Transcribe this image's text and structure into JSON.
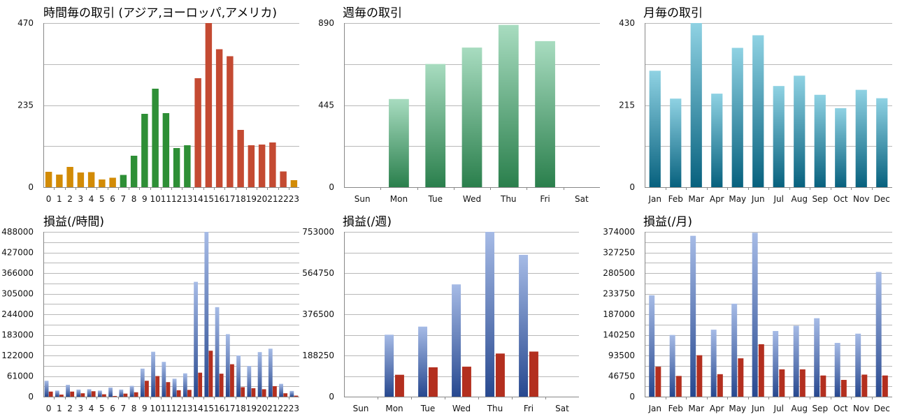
{
  "colors": {
    "orange": "#d28b06",
    "green": "#2e8f36",
    "salmon": "#c44a32",
    "mint_top": "#a8dcc0",
    "mint_bottom": "#2a7f4c",
    "cyan_top": "#8fd2e3",
    "cyan_bottom": "#07617e",
    "blue_top": "#a6bbe6",
    "blue_bottom": "#27488f",
    "red": "#b32f1f"
  },
  "chart_data": [
    {
      "type": "bar",
      "title": "時間毎の取引 (アジア,ヨーロッパ,アメリカ)",
      "categories": [
        "0",
        "1",
        "2",
        "3",
        "4",
        "5",
        "6",
        "7",
        "8",
        "9",
        "10",
        "11",
        "12",
        "13",
        "14",
        "15",
        "16",
        "17",
        "18",
        "19",
        "20",
        "21",
        "22",
        "23"
      ],
      "values": [
        44,
        36,
        58,
        42,
        43,
        22,
        27,
        35,
        90,
        210,
        282,
        212,
        112,
        120,
        312,
        470,
        395,
        375,
        164,
        120,
        122,
        128,
        45,
        20
      ],
      "bar_colors": [
        "orange",
        "orange",
        "orange",
        "orange",
        "orange",
        "orange",
        "orange",
        "green",
        "green",
        "green",
        "green",
        "green",
        "green",
        "green",
        "salmon",
        "salmon",
        "salmon",
        "salmon",
        "salmon",
        "salmon",
        "salmon",
        "salmon",
        "salmon",
        "orange"
      ],
      "ylim": [
        0,
        470
      ],
      "yticks": [
        "0",
        "235",
        "470"
      ],
      "grid": true
    },
    {
      "type": "bar",
      "title": "週毎の取引",
      "categories": [
        "Sun",
        "Mon",
        "Tue",
        "Wed",
        "Thu",
        "Fri",
        "Sat"
      ],
      "values": [
        0,
        478,
        668,
        757,
        880,
        792,
        0
      ],
      "ylim": [
        0,
        890
      ],
      "yticks": [
        "0",
        "445",
        "890"
      ],
      "grid": true
    },
    {
      "type": "bar",
      "title": "月毎の取引",
      "categories": [
        "Jan",
        "Feb",
        "Mar",
        "Apr",
        "May",
        "Jun",
        "Jul",
        "Aug",
        "Sep",
        "Oct",
        "Nov",
        "Dec"
      ],
      "values": [
        305,
        232,
        430,
        245,
        365,
        398,
        265,
        292,
        242,
        207,
        255,
        233
      ],
      "ylim": [
        0,
        430
      ],
      "yticks": [
        "0",
        "215",
        "430"
      ],
      "grid": true
    },
    {
      "type": "bar",
      "title": "損益(/時間)",
      "categories": [
        "0",
        "1",
        "2",
        "3",
        "4",
        "5",
        "6",
        "7",
        "8",
        "9",
        "10",
        "11",
        "12",
        "13",
        "14",
        "15",
        "16",
        "17",
        "18",
        "19",
        "20",
        "21",
        "22",
        "23"
      ],
      "series": [
        {
          "values": [
            47000,
            18000,
            35000,
            21000,
            22000,
            18000,
            27000,
            21000,
            32000,
            83000,
            133000,
            103000,
            53000,
            69000,
            340000,
            488000,
            265000,
            185000,
            122000,
            91000,
            132000,
            142000,
            38000,
            17000
          ]
        },
        {
          "values": [
            15000,
            6000,
            15000,
            10000,
            16000,
            7000,
            2000,
            9000,
            13000,
            47000,
            61000,
            43000,
            19000,
            20000,
            71000,
            136000,
            68000,
            96000,
            28000,
            25000,
            22000,
            31000,
            10000,
            3000
          ]
        }
      ],
      "ylim": [
        0,
        488000
      ],
      "yticks": [
        "0",
        "61000",
        "122000",
        "183000",
        "244000",
        "305000",
        "366000",
        "427000",
        "488000"
      ],
      "grid": true
    },
    {
      "type": "bar",
      "title": "損益(/週)",
      "categories": [
        "Sun",
        "Mon",
        "Tue",
        "Wed",
        "Thu",
        "Fri",
        "Sat"
      ],
      "series": [
        {
          "values": [
            0,
            283000,
            320000,
            513000,
            753000,
            648000,
            0
          ]
        },
        {
          "values": [
            0,
            100000,
            134000,
            137000,
            197000,
            206000,
            0
          ]
        }
      ],
      "ylim": [
        0,
        753000
      ],
      "yticks": [
        "0",
        "188250",
        "376500",
        "564750",
        "753000"
      ],
      "grid": true
    },
    {
      "type": "bar",
      "title": "損益(/月)",
      "categories": [
        "Jan",
        "Feb",
        "Mar",
        "Apr",
        "May",
        "Jun",
        "Jul",
        "Aug",
        "Sep",
        "Oct",
        "Nov",
        "Dec"
      ],
      "series": [
        {
          "values": [
            230000,
            140000,
            365000,
            152000,
            211000,
            372000,
            149000,
            161000,
            178000,
            122000,
            143000,
            283000
          ]
        },
        {
          "values": [
            68000,
            47000,
            94000,
            51000,
            87000,
            119000,
            62000,
            62000,
            48000,
            38000,
            50000,
            48000
          ]
        }
      ],
      "ylim": [
        0,
        374000
      ],
      "yticks": [
        "0",
        "46750",
        "93500",
        "140250",
        "187000",
        "233750",
        "280500",
        "327250",
        "374000"
      ],
      "grid": true
    }
  ]
}
